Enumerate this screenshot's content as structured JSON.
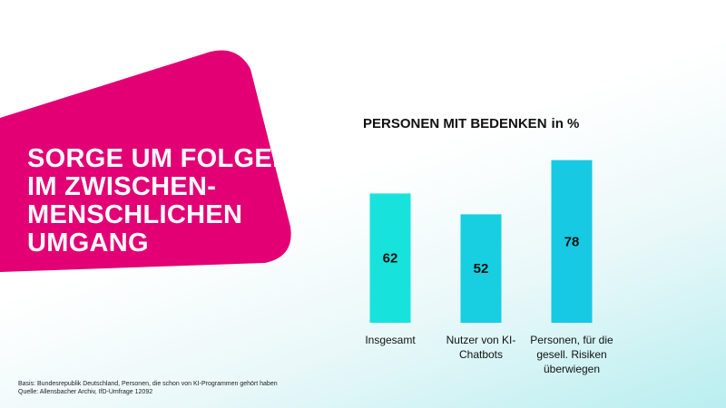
{
  "headline": {
    "lines": [
      "SORGE UM FOLGEN",
      "IM ZWISCHEN-",
      "MENSCHLICHEN",
      "UMGANG"
    ]
  },
  "colors": {
    "magenta": "#e20074",
    "bar_colors": [
      "#17e3dc",
      "#17cfe0",
      "#17c9e2"
    ]
  },
  "chart_data": {
    "type": "bar",
    "title": "PERSONEN MIT BEDENKEN",
    "unit": "in %",
    "categories": [
      [
        "Insgesamt"
      ],
      [
        "Nutzer von KI-",
        "Chatbots"
      ],
      [
        "Personen, für die",
        "gesell. Risiken",
        "überwiegen"
      ]
    ],
    "values": [
      62,
      52,
      78
    ],
    "ylim": [
      0,
      100
    ],
    "xlabel": "",
    "ylabel": ""
  },
  "footnote": {
    "basis": "Basis: Bundesrepublik Deutschland, Personen, die schon von KI-Programmen gehört haben",
    "source": "Quelle: Allensbacher Archiv, IfD-Umfrage 12092"
  }
}
